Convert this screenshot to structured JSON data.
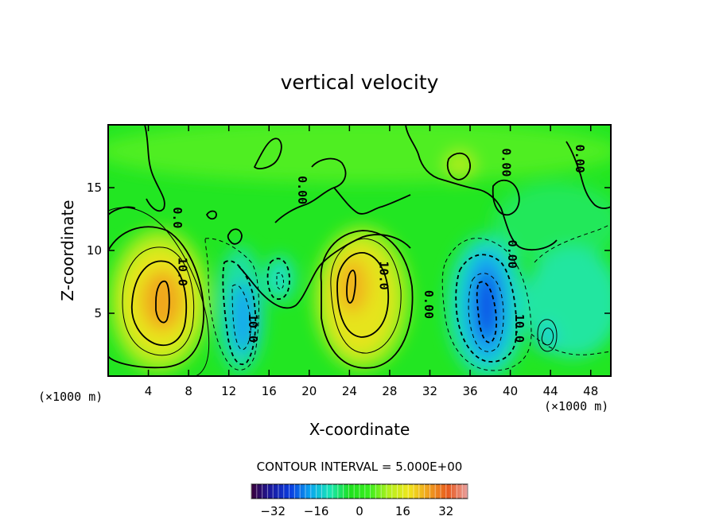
{
  "chart_data": {
    "type": "contour",
    "title": "vertical velocity",
    "xlabel": "X-coordinate",
    "ylabel": "Z-coordinate",
    "x_unit_label": "(×1000 m)",
    "z_unit_label": "(×1000 m)",
    "xlim": [
      0,
      50
    ],
    "ylim": [
      0,
      20
    ],
    "x_ticks": [
      4,
      8,
      12,
      16,
      20,
      24,
      28,
      32,
      36,
      40,
      44,
      48
    ],
    "x_tick_labels": [
      "4",
      "8",
      "12",
      "16",
      "20",
      "24",
      "28",
      "32",
      "36",
      "40",
      "44",
      "48"
    ],
    "y_ticks": [
      5,
      10,
      15
    ],
    "y_tick_labels": [
      "5",
      "10",
      "15"
    ],
    "contour_interval_text": "CONTOUR INTERVAL = 5.000E+00",
    "contour_labels": [
      {
        "text": "10.0",
        "x": 7.0,
        "z": 8.3
      },
      {
        "text": "10.0",
        "x": 14.0,
        "z": 3.8
      },
      {
        "text": "10.0",
        "x": 27.0,
        "z": 8.0
      },
      {
        "text": "0.00",
        "x": 31.5,
        "z": 5.7
      },
      {
        "text": "10.0",
        "x": 40.5,
        "z": 3.8
      },
      {
        "text": "0.00",
        "x": 39.8,
        "z": 9.7
      },
      {
        "text": "0.00",
        "x": 18.9,
        "z": 14.8
      },
      {
        "text": "0.00",
        "x": 46.5,
        "z": 17.3
      },
      {
        "text": "0.00",
        "x": 39.2,
        "z": 17.0
      },
      {
        "text": "0.0",
        "x": 6.5,
        "z": 12.6
      }
    ],
    "features": [
      {
        "kind": "updraft",
        "x": 5.5,
        "z": 6.0,
        "peak": 24
      },
      {
        "kind": "downdraft",
        "x": 13.5,
        "z": 4.5,
        "peak": -20
      },
      {
        "kind": "downdraft",
        "x": 17.5,
        "z": 7.5,
        "peak": -8
      },
      {
        "kind": "updraft",
        "x": 24.5,
        "z": 6.5,
        "peak": 21
      },
      {
        "kind": "downdraft",
        "x": 37.5,
        "z": 5.5,
        "peak": -26
      },
      {
        "kind": "downdraft",
        "x": 43.5,
        "z": 3.3,
        "peak": -7
      },
      {
        "kind": "updraft",
        "x": 35.3,
        "z": 17.0,
        "peak": 8
      },
      {
        "kind": "downdraft",
        "x": 47.0,
        "z": 7.0,
        "peak": -7
      }
    ],
    "colorbar": {
      "min": -40,
      "max": 40,
      "ticks": [
        -32,
        -16,
        0,
        16,
        32
      ],
      "tick_labels": [
        "−32",
        "−16",
        "0",
        "16",
        "32"
      ],
      "colors": [
        "#3a003a",
        "#1a1aa0",
        "#0a3de0",
        "#0aa6f0",
        "#19e6b4",
        "#1ee01e",
        "#38ee1e",
        "#b4f01e",
        "#f0e61e",
        "#f0a01e",
        "#e85a1e",
        "#e8a0a0"
      ]
    }
  }
}
